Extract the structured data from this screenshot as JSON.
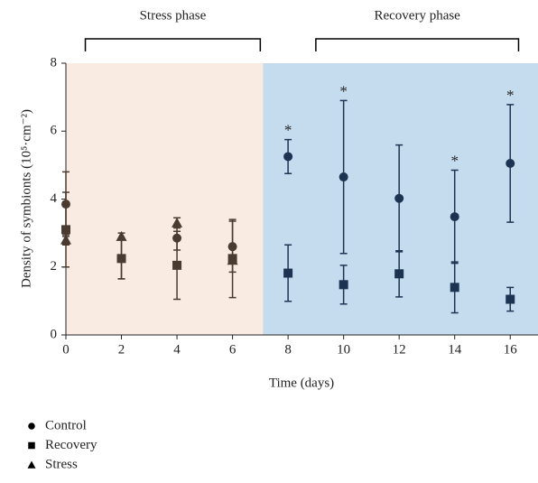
{
  "chart_data": {
    "type": "scatter",
    "x_label": "Time (days)",
    "y_label": "Density of symbionts (10⁵·cm⁻²)",
    "x": [
      0,
      2,
      4,
      6,
      8,
      10,
      12,
      14,
      16
    ],
    "series": [
      {
        "name": "Control",
        "marker": "circle",
        "values": [
          3.85,
          2.25,
          2.85,
          2.6,
          5.25,
          4.65,
          4.02,
          3.48,
          5.05
        ],
        "errors": [
          0.95,
          0.6,
          0.35,
          0.75,
          0.5,
          2.25,
          1.57,
          1.37,
          1.73
        ],
        "significance": [
          null,
          null,
          null,
          null,
          "*",
          "*",
          null,
          "*",
          "*"
        ]
      },
      {
        "name": "Recovery",
        "marker": "square",
        "values": [
          3.1,
          2.25,
          2.05,
          2.25,
          1.82,
          1.48,
          1.8,
          1.4,
          1.05
        ],
        "errors": [
          1.1,
          0.6,
          1.0,
          1.15,
          0.83,
          0.57,
          0.68,
          0.75,
          0.35
        ]
      },
      {
        "name": "Stress",
        "marker": "triangle",
        "values": [
          2.8,
          2.9,
          3.3,
          2.2,
          null,
          null,
          null,
          null,
          null
        ],
        "errors": [
          0.15,
          0.1,
          0.15,
          0.1,
          null,
          null,
          null,
          null,
          null
        ]
      }
    ],
    "phases": [
      {
        "label": "Stress phase",
        "xmin": 0,
        "xmax": 7.1,
        "bracket": [
          0.7,
          7.0
        ],
        "color": "#f9ebe1",
        "marker_color": "#4a3b31"
      },
      {
        "label": "Recovery phase",
        "xmin": 7.1,
        "xmax": 17,
        "bracket": [
          9,
          16.3
        ],
        "color": "#c5dcef",
        "marker_color": "#1c3452"
      }
    ],
    "xlim": [
      0,
      17
    ],
    "ylim": [
      0,
      8
    ],
    "xticks": [
      0,
      2,
      4,
      6,
      8,
      10,
      12,
      14,
      16
    ],
    "yticks": [
      0,
      2,
      4,
      6,
      8
    ],
    "legend": "bottom-left",
    "legend_color": "#000000"
  }
}
